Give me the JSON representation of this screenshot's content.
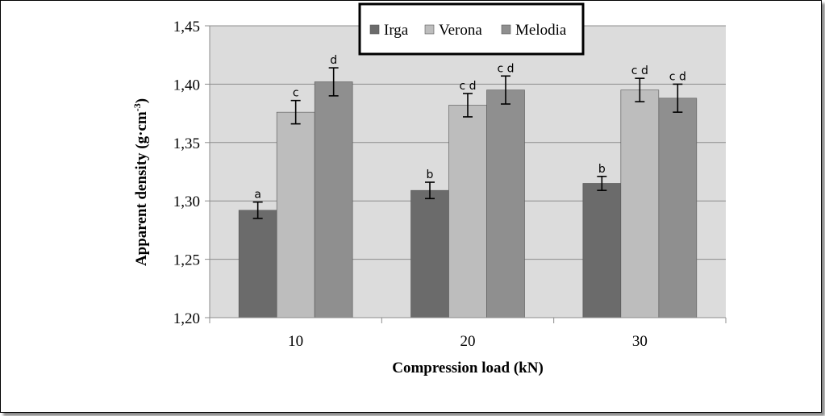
{
  "chart_data": {
    "type": "bar",
    "categories": [
      "10",
      "20",
      "30"
    ],
    "series": [
      {
        "name": "Irga",
        "color": "#6b6b6b",
        "values": [
          1.292,
          1.309,
          1.315
        ],
        "errors": [
          0.007,
          0.007,
          0.006
        ],
        "letters": [
          "a",
          "b",
          "b"
        ]
      },
      {
        "name": "Verona",
        "color": "#bdbdbd",
        "values": [
          1.376,
          1.382,
          1.395
        ],
        "errors": [
          0.01,
          0.01,
          0.01
        ],
        "letters": [
          "c",
          "c d",
          "c d"
        ]
      },
      {
        "name": "Melodia",
        "color": "#8f8f8f",
        "values": [
          1.402,
          1.395,
          1.388
        ],
        "errors": [
          0.012,
          0.012,
          0.012
        ],
        "letters": [
          "d",
          "c d",
          "c d"
        ]
      }
    ],
    "yticks": [
      "1,20",
      "1,25",
      "1,30",
      "1,35",
      "1,40",
      "1,45"
    ],
    "ylim": [
      1.2,
      1.45
    ],
    "xlabel": "Compression load (kN)",
    "ylabel": "Apparent density (g·cm",
    "ylabel_sup": "-3",
    "ylabel_end": ")",
    "grid": true,
    "legend_position": "top"
  }
}
